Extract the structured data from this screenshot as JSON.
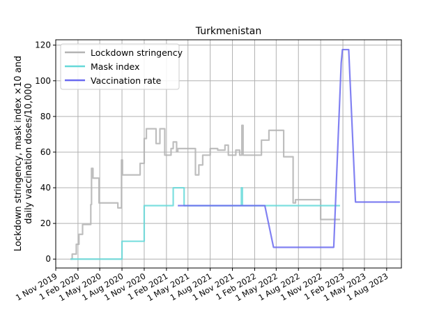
{
  "chart_data": {
    "type": "line",
    "title": "Turkmenistan",
    "xlabel": "",
    "ylabel_lines": [
      "Lockdown stringency, mask index ×10 and",
      "daily vaccination doses/10,000"
    ],
    "x_axis": {
      "type": "date",
      "range": [
        "2019-11-01",
        "2023-10-01"
      ],
      "ticks": [
        "2019-11-01",
        "2020-02-01",
        "2020-05-01",
        "2020-08-01",
        "2020-11-01",
        "2021-02-01",
        "2021-05-01",
        "2021-08-01",
        "2021-11-01",
        "2022-02-01",
        "2022-05-01",
        "2022-08-01",
        "2022-11-01",
        "2023-02-01",
        "2023-05-01",
        "2023-08-01"
      ],
      "tick_labels": [
        "1 Nov 2019",
        "1 Feb 2020",
        "1 May 2020",
        "1 Aug 2020",
        "1 Nov 2020",
        "1 Feb 2021",
        "1 May 2021",
        "1 Aug 2021",
        "1 Nov 2021",
        "1 Feb 2022",
        "1 May 2022",
        "1 Aug 2022",
        "1 Nov 2022",
        "1 Feb 2023",
        "1 May 2023",
        "1 Aug 2023"
      ]
    },
    "ylim": [
      -5,
      123
    ],
    "y_ticks": [
      0,
      20,
      40,
      60,
      80,
      100,
      120
    ],
    "grid": true,
    "legend_position": "top-left",
    "series": [
      {
        "name": "Lockdown stringency",
        "color": "#b3b3b3",
        "step": true,
        "points": [
          [
            "2020-01-01",
            0
          ],
          [
            "2020-01-08",
            2.8
          ],
          [
            "2020-01-25",
            8.3
          ],
          [
            "2020-02-05",
            13.9
          ],
          [
            "2020-02-20",
            19.4
          ],
          [
            "2020-03-25",
            30.6
          ],
          [
            "2020-03-28",
            50.9
          ],
          [
            "2020-04-03",
            45.4
          ],
          [
            "2020-04-28",
            31.5
          ],
          [
            "2020-07-15",
            28.7
          ],
          [
            "2020-07-30",
            55.6
          ],
          [
            "2020-08-03",
            47.2
          ],
          [
            "2020-10-15",
            53.7
          ],
          [
            "2020-11-01",
            67.6
          ],
          [
            "2020-11-10",
            73.1
          ],
          [
            "2020-12-20",
            64.8
          ],
          [
            "2021-01-05",
            73.1
          ],
          [
            "2021-01-25",
            58.3
          ],
          [
            "2021-02-20",
            62.0
          ],
          [
            "2021-03-01",
            65.7
          ],
          [
            "2021-03-15",
            60.2
          ],
          [
            "2021-03-20",
            62.0
          ],
          [
            "2021-06-01",
            47.2
          ],
          [
            "2021-06-15",
            52.8
          ],
          [
            "2021-07-01",
            58.3
          ],
          [
            "2021-08-01",
            62.0
          ],
          [
            "2021-09-01",
            61.1
          ],
          [
            "2021-10-01",
            63.9
          ],
          [
            "2021-10-15",
            58.3
          ],
          [
            "2021-11-15",
            61.1
          ],
          [
            "2021-12-01",
            58.3
          ],
          [
            "2021-12-10",
            75.0
          ],
          [
            "2021-12-15",
            58.3
          ],
          [
            "2022-03-01",
            66.7
          ],
          [
            "2022-04-01",
            72.2
          ],
          [
            "2022-06-01",
            57.4
          ],
          [
            "2022-07-10",
            31.5
          ],
          [
            "2022-07-20",
            33.3
          ],
          [
            "2022-11-01",
            22.2
          ],
          [
            "2023-01-20",
            22.2
          ]
        ]
      },
      {
        "name": "Mask index",
        "color": "#66d9d9",
        "step": true,
        "points": [
          [
            "2020-01-01",
            0
          ],
          [
            "2020-08-01",
            10
          ],
          [
            "2020-11-01",
            30
          ],
          [
            "2021-03-01",
            40
          ],
          [
            "2021-04-15",
            30
          ],
          [
            "2021-12-08",
            40
          ],
          [
            "2021-12-12",
            30
          ],
          [
            "2023-01-20",
            30
          ]
        ]
      },
      {
        "name": "Vaccination rate",
        "color": "#6b6bf0",
        "step": false,
        "points": [
          [
            "2021-03-20",
            30
          ],
          [
            "2022-03-15",
            30
          ],
          [
            "2022-04-20",
            6.6
          ],
          [
            "2022-12-25",
            6.6
          ],
          [
            "2023-01-25",
            110
          ],
          [
            "2023-01-30",
            117.5
          ],
          [
            "2023-02-25",
            117.5
          ],
          [
            "2023-03-25",
            32
          ],
          [
            "2023-09-25",
            32
          ]
        ]
      }
    ]
  }
}
